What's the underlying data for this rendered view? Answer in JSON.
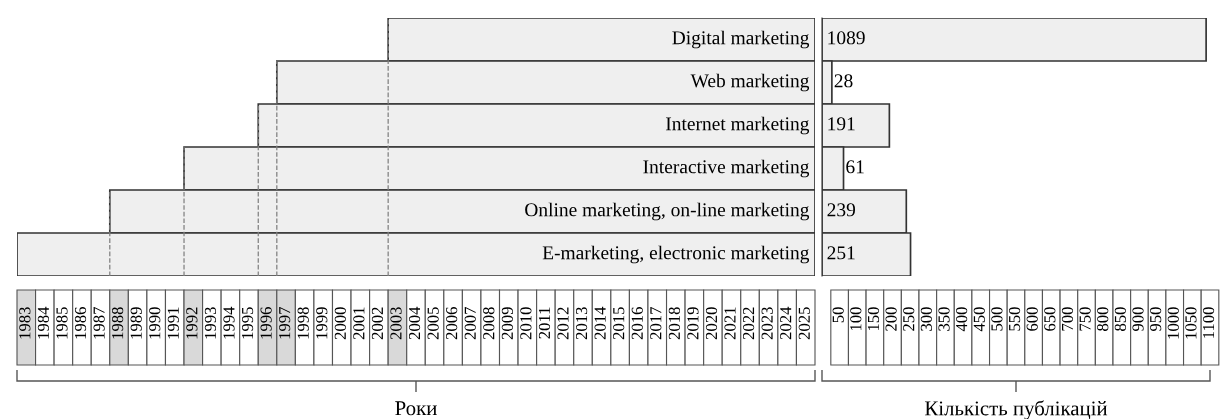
{
  "chart_data": [
    {
      "type": "bar",
      "orientation": "horizontal",
      "categories": [
        "Digital marketing",
        "Web marketing",
        "Internet marketing",
        "Interactive marketing",
        "Online marketing, on-line marketing",
        "E-marketing, electronic marketing"
      ],
      "base": [
        2003,
        1997,
        1996,
        1992,
        1988,
        1983
      ],
      "values": [
        23,
        29,
        30,
        34,
        38,
        43
      ],
      "color": "#efefef",
      "xlim": [
        1983,
        2026
      ],
      "xticks": [
        {
          "value": 1983.5,
          "label": "1983"
        },
        {
          "value": 1984.5,
          "label": "1984"
        },
        {
          "value": 1985.5,
          "label": "1985"
        },
        {
          "value": 1986.5,
          "label": "1986"
        },
        {
          "value": 1987.5,
          "label": "1987"
        },
        {
          "value": 1988.5,
          "label": "1988"
        },
        {
          "value": 1989.5,
          "label": "1989"
        },
        {
          "value": 1990.5,
          "label": "1990"
        },
        {
          "value": 1991.5,
          "label": "1991"
        },
        {
          "value": 1992.5,
          "label": "1992"
        },
        {
          "value": 1993.5,
          "label": "1993"
        },
        {
          "value": 1994.5,
          "label": "1994"
        },
        {
          "value": 1995.5,
          "label": "1995"
        },
        {
          "value": 1996.5,
          "label": "1996"
        },
        {
          "value": 1997.5,
          "label": "1997"
        },
        {
          "value": 1998.5,
          "label": "1998"
        },
        {
          "value": 1999.5,
          "label": "1999"
        },
        {
          "value": 2000.5,
          "label": "2000"
        },
        {
          "value": 2001.5,
          "label": "2001"
        },
        {
          "value": 2002.5,
          "label": "2002"
        },
        {
          "value": 2003.5,
          "label": "2003"
        },
        {
          "value": 2004.5,
          "label": "2004"
        },
        {
          "value": 2005.5,
          "label": "2005"
        },
        {
          "value": 2006.5,
          "label": "2006"
        },
        {
          "value": 2007.5,
          "label": "2007"
        },
        {
          "value": 2008.5,
          "label": "2008"
        },
        {
          "value": 2009.5,
          "label": "2009"
        },
        {
          "value": 2010.5,
          "label": "2010"
        },
        {
          "value": 2011.5,
          "label": "2011"
        },
        {
          "value": 2012.5,
          "label": "2012"
        },
        {
          "value": 2013.5,
          "label": "2013"
        },
        {
          "value": 2014.5,
          "label": "2014"
        },
        {
          "value": 2015.5,
          "label": "2015"
        },
        {
          "value": 2016.5,
          "label": "2016"
        },
        {
          "value": 2017.5,
          "label": "2017"
        },
        {
          "value": 2018.5,
          "label": "2018"
        },
        {
          "value": 2019.5,
          "label": "2019"
        },
        {
          "value": 2020.5,
          "label": "2020"
        },
        {
          "value": 2021.5,
          "label": "2021"
        },
        {
          "value": 2022.5,
          "label": "2022"
        },
        {
          "value": 2023.5,
          "label": "2023"
        },
        {
          "value": 2024.5,
          "label": "2024"
        },
        {
          "value": 2025.5,
          "label": "2025"
        }
      ],
      "xlabel": "Роки",
      "tick_labels": "x",
      "ref_lines": [
        {
          "axis": "x",
          "value": 1988,
          "color": "#808080",
          "line_style": "dashed"
        },
        {
          "axis": "x",
          "value": 1992,
          "color": "#808080",
          "line_style": "dashed"
        },
        {
          "axis": "x",
          "value": 1996,
          "color": "#808080",
          "line_style": "dashed"
        },
        {
          "axis": "x",
          "value": 1997,
          "color": "#808080",
          "line_style": "dashed"
        },
        {
          "axis": "x",
          "value": 2003,
          "color": "#808080",
          "line_style": "dashed"
        }
      ]
    },
    {
      "type": "bar",
      "orientation": "horizontal",
      "categories": [
        null,
        null,
        null,
        null,
        null,
        null
      ],
      "values": [
        1089,
        28,
        191,
        61,
        239,
        251
      ],
      "color": "#efefef",
      "data_labels": true,
      "xlim": [
        0,
        1100
      ],
      "xticks": [
        50,
        100,
        150,
        200,
        250,
        300,
        350,
        400,
        450,
        500,
        550,
        600,
        650,
        700,
        750,
        800,
        850,
        900,
        950,
        1000,
        1050,
        1100
      ],
      "xlabel": "Кількість публікацій",
      "tick_labels": "x"
    }
  ]
}
